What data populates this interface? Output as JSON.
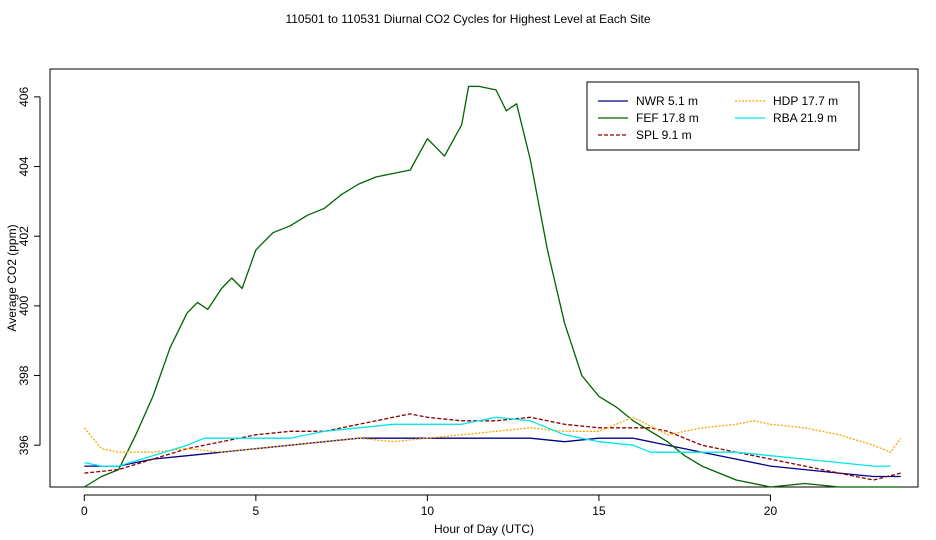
{
  "chart_data": {
    "type": "line",
    "title": "110501  to  110531 Diurnal CO2 Cycles for Highest Level at Each Site",
    "xlabel": "Hour of Day (UTC)",
    "ylabel": "Average CO2 (ppm)",
    "xlim": [
      -1,
      24.3
    ],
    "ylim": [
      394.8,
      406.8
    ],
    "xticks": [
      0,
      5,
      10,
      15,
      20
    ],
    "yticks": [
      396,
      398,
      400,
      402,
      404,
      406
    ],
    "legend_position": "top-right",
    "series": [
      {
        "name": "NWR",
        "label": "NWR  5.1 m",
        "color": "#00008b",
        "dash": "solid",
        "x": [
          0,
          1,
          2,
          3,
          4,
          5,
          6,
          7,
          8,
          9,
          10,
          11,
          12,
          13,
          14,
          15,
          16,
          17,
          18,
          19,
          20,
          21,
          22,
          23,
          23.8
        ],
        "y": [
          395.4,
          395.4,
          395.6,
          395.7,
          395.8,
          395.9,
          396.0,
          396.1,
          396.2,
          396.2,
          396.2,
          396.2,
          396.2,
          396.2,
          396.1,
          396.2,
          396.2,
          396.0,
          395.8,
          395.6,
          395.4,
          395.3,
          395.2,
          395.1,
          395.1
        ]
      },
      {
        "name": "FEF",
        "label": "FEF  17.8 m",
        "color": "#006400",
        "dash": "solid",
        "x": [
          0,
          0.5,
          1,
          1.5,
          2,
          2.5,
          3,
          3.3,
          3.6,
          4,
          4.3,
          4.6,
          5,
          5.5,
          6,
          6.5,
          7,
          7.5,
          8,
          8.5,
          9,
          9.5,
          10,
          10.5,
          11,
          11.2,
          11.5,
          12,
          12.3,
          12.6,
          13,
          13.5,
          14,
          14.5,
          15,
          15.5,
          16,
          16.5,
          17,
          17.5,
          18,
          19,
          20,
          21,
          22,
          23,
          23.8
        ],
        "y": [
          394.8,
          395.1,
          395.3,
          396.3,
          397.4,
          398.8,
          399.8,
          400.1,
          399.9,
          400.5,
          400.8,
          400.5,
          401.6,
          402.1,
          402.3,
          402.6,
          402.8,
          403.2,
          403.5,
          403.7,
          403.8,
          403.9,
          404.8,
          404.3,
          405.2,
          406.3,
          406.3,
          406.2,
          405.6,
          405.8,
          404.2,
          401.6,
          399.5,
          398.0,
          397.4,
          397.1,
          396.7,
          396.4,
          396.1,
          395.7,
          395.4,
          395.0,
          394.8,
          394.9,
          394.8,
          394.8,
          394.8
        ]
      },
      {
        "name": "SPL",
        "label": "SPL  9.1 m",
        "color": "#8b0000",
        "dash": "dashed",
        "x": [
          0,
          1,
          2,
          3,
          4,
          5,
          6,
          7,
          8,
          9,
          9.5,
          10,
          11,
          12,
          13,
          14,
          15,
          16,
          16.5,
          17,
          18,
          19,
          20,
          21,
          22,
          23,
          23.8
        ],
        "y": [
          395.2,
          395.3,
          395.6,
          395.9,
          396.1,
          396.3,
          396.4,
          396.4,
          396.6,
          396.8,
          396.9,
          396.8,
          396.7,
          396.7,
          396.8,
          396.6,
          396.5,
          396.5,
          396.5,
          396.4,
          396.0,
          395.8,
          395.6,
          395.4,
          395.2,
          395.0,
          395.2
        ]
      },
      {
        "name": "HDP",
        "label": "HDP  17.7 m",
        "color": "#ffa500",
        "dash": "dotted",
        "x": [
          0,
          0.5,
          1,
          2,
          3,
          4,
          5,
          6,
          7,
          8,
          9,
          10,
          11,
          12,
          13,
          14,
          15,
          16,
          17,
          18,
          19,
          19.5,
          20,
          21,
          22,
          23,
          23.5,
          23.8
        ],
        "y": [
          396.5,
          395.9,
          395.8,
          395.8,
          395.9,
          395.8,
          395.9,
          396.0,
          396.1,
          396.2,
          396.1,
          396.2,
          396.3,
          396.4,
          396.5,
          396.4,
          396.4,
          396.8,
          396.3,
          396.5,
          396.6,
          396.7,
          396.6,
          396.5,
          396.3,
          396.0,
          395.8,
          396.2
        ]
      },
      {
        "name": "RBA",
        "label": "RBA  21.9 m",
        "color": "#00e5ee",
        "dash": "solid",
        "x": [
          0,
          0.5,
          1,
          2,
          3,
          3.5,
          4,
          5,
          6,
          7,
          8,
          9,
          10,
          11,
          12,
          13,
          14,
          15,
          16,
          16.5,
          17,
          18,
          19,
          20,
          21,
          22,
          23,
          23.5
        ],
        "y": [
          395.5,
          395.4,
          395.4,
          395.7,
          396.0,
          396.2,
          396.2,
          396.2,
          396.2,
          396.4,
          396.5,
          396.6,
          396.6,
          396.6,
          396.8,
          396.7,
          396.3,
          396.1,
          396.0,
          395.8,
          395.8,
          395.8,
          395.8,
          395.7,
          395.6,
          395.5,
          395.4,
          395.4
        ]
      }
    ]
  }
}
